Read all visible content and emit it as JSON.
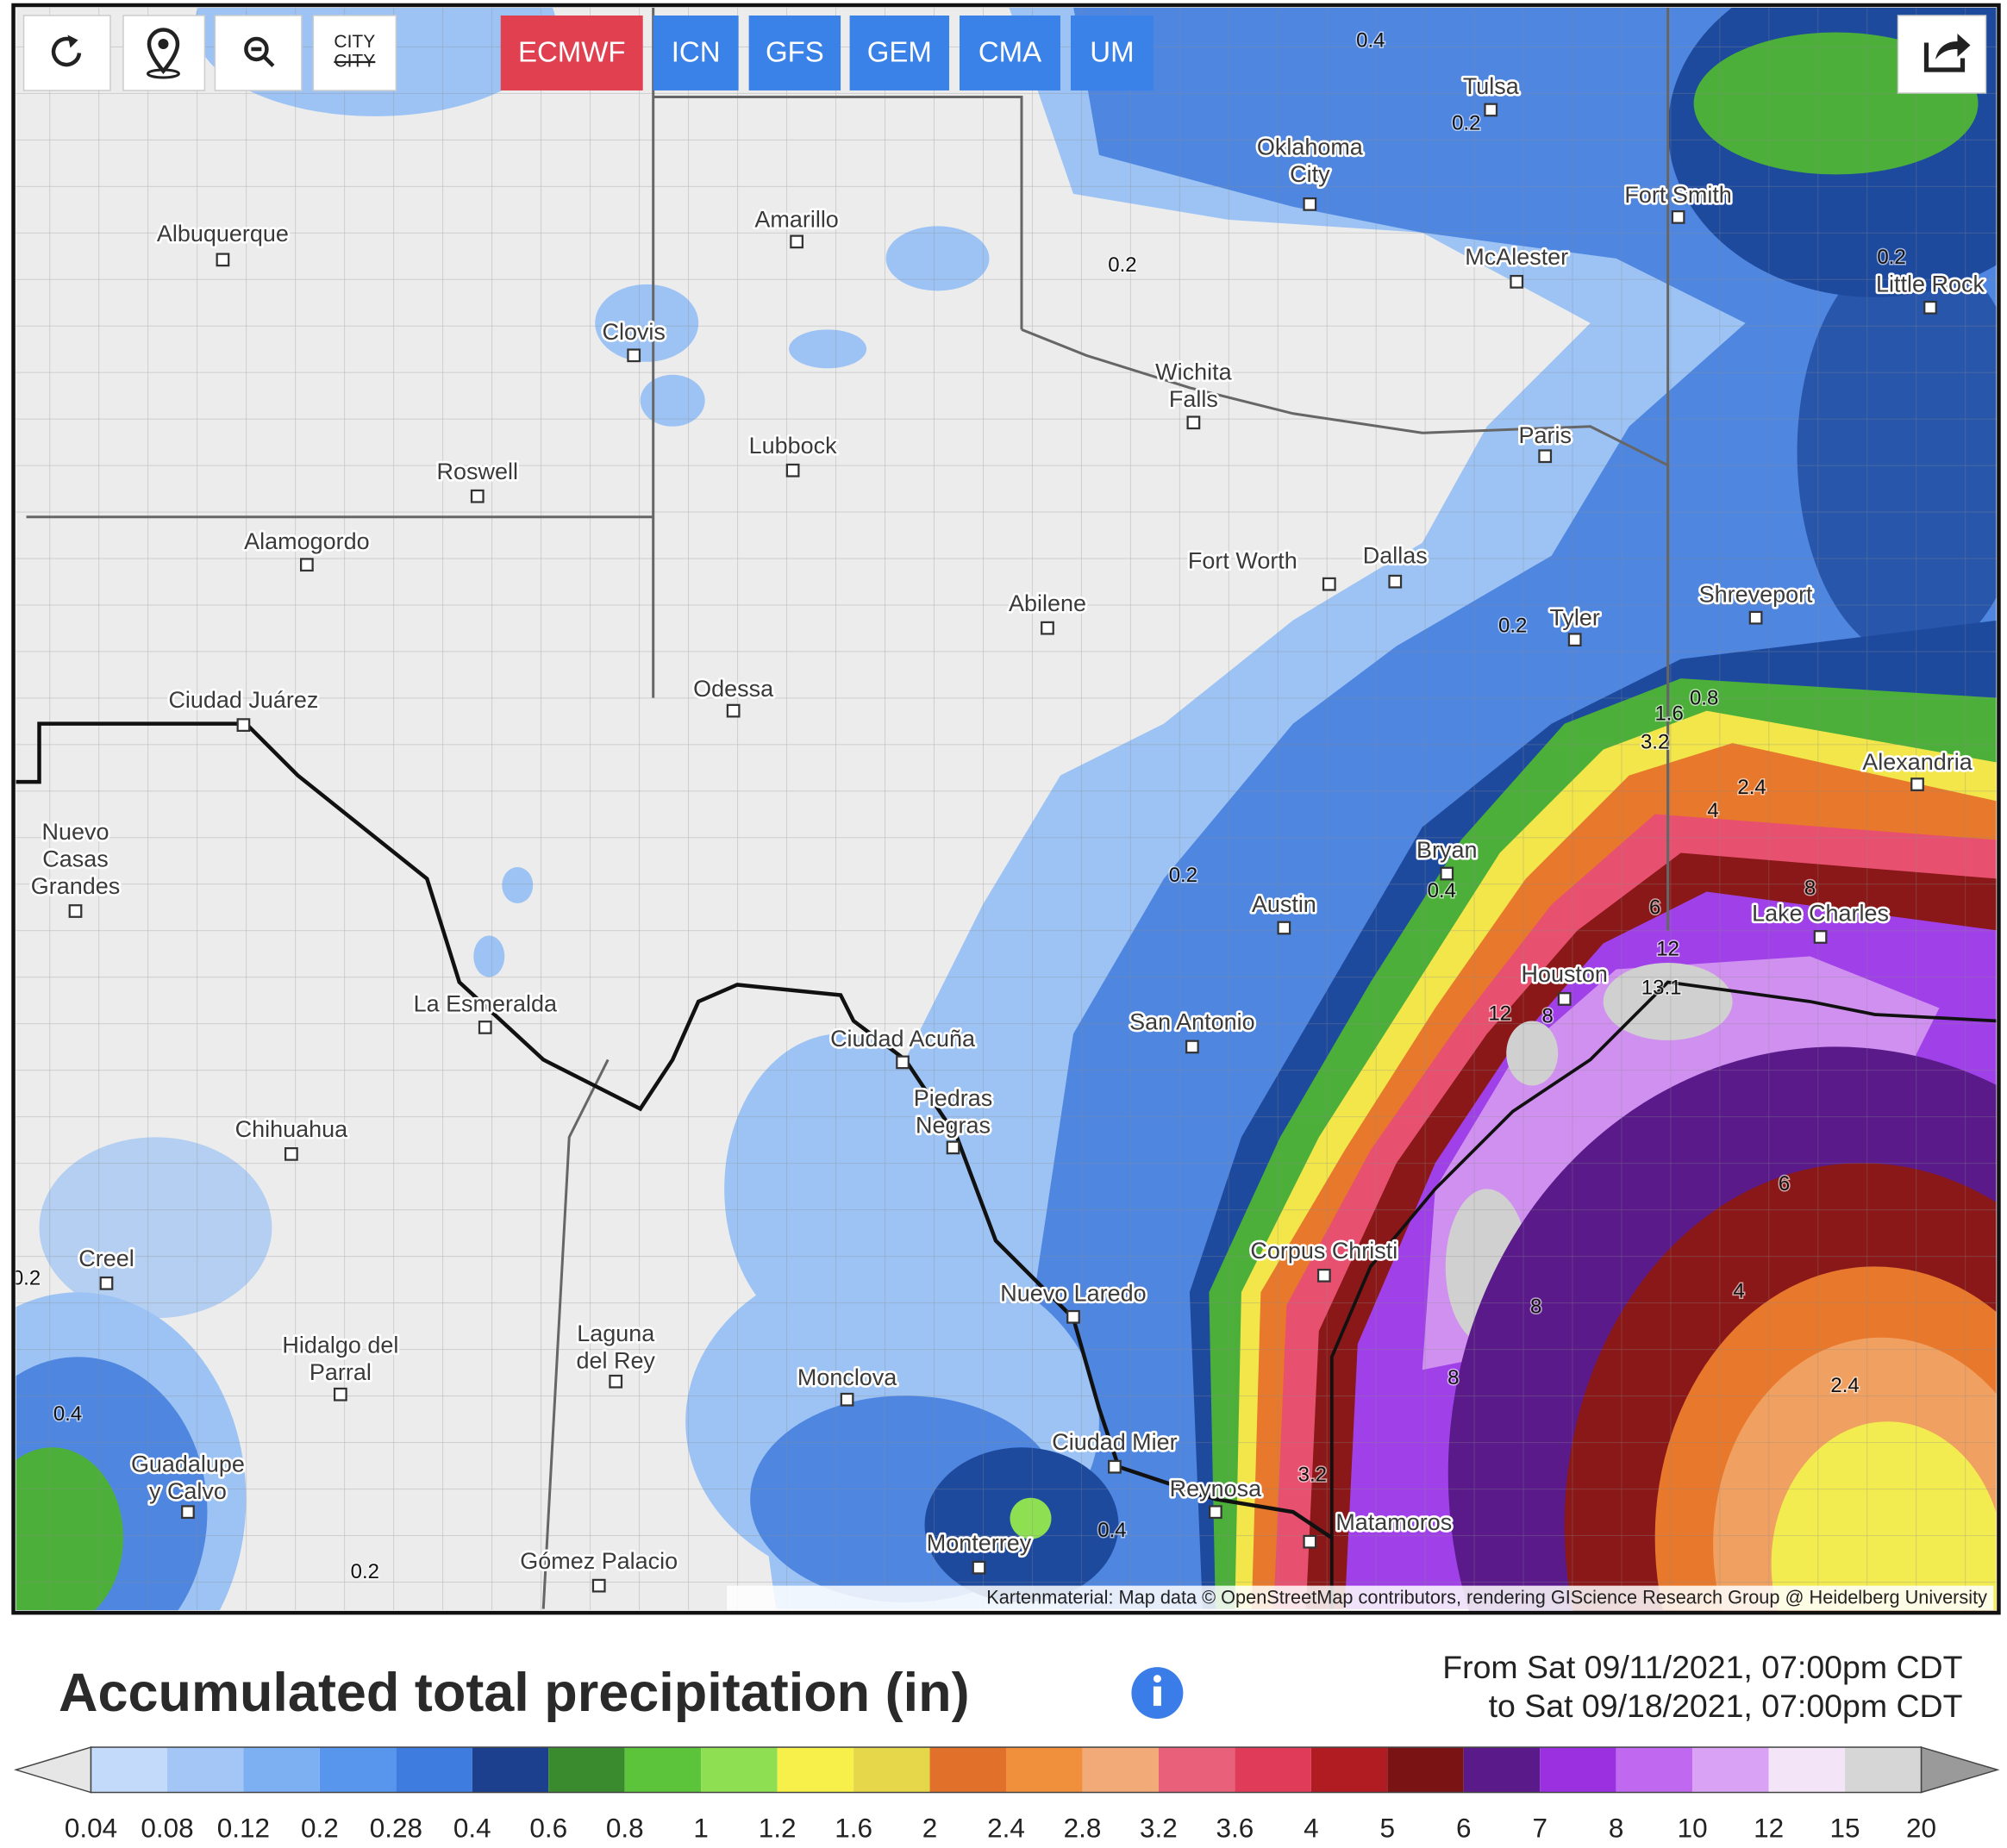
{
  "toolbar": {
    "city_button": [
      "CITY",
      "CITY"
    ]
  },
  "models": [
    {
      "label": "ECMWF",
      "active": true
    },
    {
      "label": "ICN",
      "active": false
    },
    {
      "label": "GFS",
      "active": false
    },
    {
      "label": "GEM",
      "active": false
    },
    {
      "label": "CMA",
      "active": false
    },
    {
      "label": "UM",
      "active": false
    }
  ],
  "map": {
    "cities": [
      [
        "Tulsa"
      ],
      [
        "Oklahoma",
        "City"
      ],
      [
        "Amarillo"
      ],
      [
        "Albuquerque"
      ],
      [
        "Fort Smith"
      ],
      [
        "McAlester"
      ],
      [
        "Little Rock"
      ],
      [
        "Clovis"
      ],
      [
        "Wichita",
        "Falls"
      ],
      [
        "Lubbock"
      ],
      [
        "Paris"
      ],
      [
        "Roswell"
      ],
      [
        "Alamogordo"
      ],
      [
        "Fort Worth"
      ],
      [
        "Dallas"
      ],
      [
        "Abilene"
      ],
      [
        "Shreveport"
      ],
      [
        "Tyler"
      ],
      [
        "Odessa"
      ],
      [
        "Ciudad Juárez"
      ],
      [
        "Alexandria"
      ],
      [
        "Nuevo",
        "Casas",
        "Grandes"
      ],
      [
        "Bryan"
      ],
      [
        "Austin"
      ],
      [
        "Lake Charles"
      ],
      [
        "Houston"
      ],
      [
        "La Esmeralda"
      ],
      [
        "San Antonio"
      ],
      [
        "Ciudad Acuña"
      ],
      [
        "Piedras",
        "Negras"
      ],
      [
        "Chihuahua"
      ],
      [
        "Corpus Christi"
      ],
      [
        "Creel"
      ],
      [
        "Nuevo Laredo"
      ],
      [
        "Laguna",
        "del Rey"
      ],
      [
        "Hidalgo del",
        "Parral"
      ],
      [
        "Monclova"
      ],
      [
        "Ciudad Mier"
      ],
      [
        "Guadalupe",
        "y Calvo"
      ],
      [
        "Reynosa"
      ],
      [
        "Matamoros"
      ],
      [
        "Monterrey"
      ],
      [
        "Gómez Palacio"
      ]
    ],
    "contour_labels": [
      "0.4",
      "0.2",
      "0.2",
      "0.2",
      "0.2",
      "1.6",
      "0.8",
      "3.2",
      "2.4",
      "4",
      "0.2",
      "0.4",
      "8",
      "6",
      "12",
      "13.1",
      "12",
      "8",
      "6",
      "4",
      "8",
      "8",
      "2.4",
      "3.2",
      "0.4",
      "0.2",
      "0.4",
      "0.2"
    ],
    "attribution": "Kartenmaterial: Map data © OpenStreetMap contributors, rendering GIScience Research Group @ Heidelberg University"
  },
  "legend": {
    "title": "Accumulated total precipitation (in)",
    "period": [
      "From Sat 09/11/2021, 07:00pm CDT",
      "to Sat 09/18/2021, 07:00pm CDT"
    ],
    "labels": [
      "0.04",
      "0.08",
      "0.12",
      "0.2",
      "0.28",
      "0.4",
      "0.6",
      "0.8",
      "1",
      "1.2",
      "1.6",
      "2",
      "2.4",
      "2.8",
      "3.2",
      "3.6",
      "4",
      "5",
      "6",
      "7",
      "8",
      "10",
      "12",
      "15",
      "20"
    ],
    "colors": [
      "#c4dafb",
      "#a3c6f6",
      "#7cb0f2",
      "#5896ee",
      "#3e7ddf",
      "#1c3f8e",
      "#3a8a2e",
      "#5cc43b",
      "#8fdf52",
      "#f7f04a",
      "#e6d64a",
      "#e0702a",
      "#f08f3c",
      "#f2aa78",
      "#e8607a",
      "#e03c5a",
      "#b01c22",
      "#7a1414",
      "#5a1a8a",
      "#9a30e0",
      "#c068f0",
      "#d9a2f4",
      "#f4e4f8",
      "#d6d6d6"
    ],
    "below_color": "#e6e6e6",
    "above_color": "#9a9a9a"
  }
}
